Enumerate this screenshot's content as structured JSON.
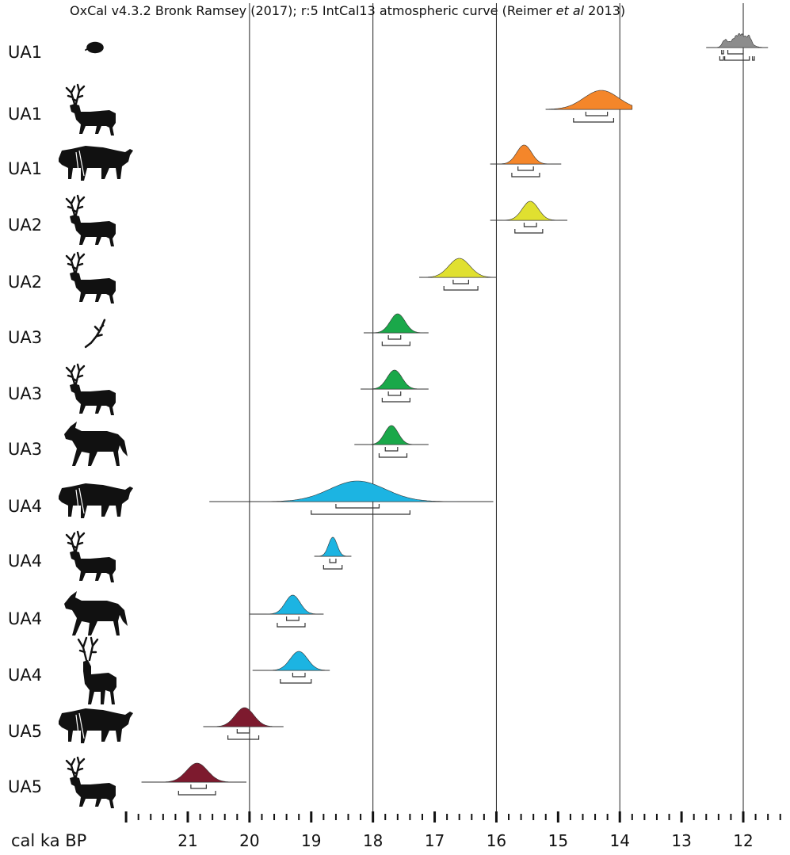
{
  "chart_data": {
    "type": "area",
    "title": "OxCal v4.3.2 Bronk Ramsey (2017); r:5 IntCal13 atmospheric curve (Reimer",
    "title_italic": "et al",
    "title_end": "2013)",
    "xlabel": "cal ka BP",
    "x_axis_reversed": true,
    "xlim": [
      22.0,
      11.3
    ],
    "x_ticks": [
      21,
      20,
      19,
      18,
      17,
      16,
      15,
      14,
      13,
      12
    ],
    "x_tick_labels": [
      "21",
      "20",
      "19",
      "18",
      "17",
      "16",
      "15",
      "14",
      "13",
      "12"
    ],
    "grid_lines_x": [
      20,
      18,
      16,
      14,
      12
    ],
    "series": [
      {
        "label": "UA1",
        "animal_icon": "hedgehog-icon",
        "color": "#8c8c8c",
        "shape": "spiky",
        "peak": 12.05,
        "sigma": 0.12,
        "range": [
          12.6,
          11.6
        ],
        "range_68": [
          [
            12.35,
            12.32
          ],
          [
            12.25,
            12.0
          ]
        ],
        "range_95": [
          [
            12.38,
            12.32
          ],
          [
            12.3,
            11.9
          ],
          [
            11.85,
            11.82
          ]
        ]
      },
      {
        "label": "UA1",
        "animal_icon": "reindeer-icon",
        "color": "#f4862a",
        "peak": 14.3,
        "sigma": 0.28,
        "range": [
          15.2,
          13.8
        ],
        "range_68": [
          [
            14.55,
            14.2
          ]
        ],
        "range_95": [
          [
            14.75,
            14.1
          ]
        ]
      },
      {
        "label": "UA1",
        "animal_icon": "bison-icon",
        "color": "#f4862a",
        "peak": 15.55,
        "sigma": 0.12,
        "range": [
          16.1,
          14.95
        ],
        "range_68": [
          [
            15.65,
            15.4
          ]
        ],
        "range_95": [
          [
            15.75,
            15.3
          ]
        ]
      },
      {
        "label": "UA2",
        "animal_icon": "reindeer-icon",
        "color": "#e0e030",
        "peak": 15.45,
        "sigma": 0.13,
        "range": [
          16.1,
          14.85
        ],
        "range_68": [
          [
            15.55,
            15.35
          ]
        ],
        "range_95": [
          [
            15.7,
            15.25
          ]
        ]
      },
      {
        "label": "UA2",
        "animal_icon": "reindeer-icon",
        "color": "#e0e030",
        "peak": 16.6,
        "sigma": 0.17,
        "range": [
          17.25,
          16.0
        ],
        "range_68": [
          [
            16.7,
            16.45
          ]
        ],
        "range_95": [
          [
            16.85,
            16.3
          ]
        ]
      },
      {
        "label": "UA3",
        "animal_icon": "antler-icon",
        "color": "#1aa84a",
        "peak": 17.6,
        "sigma": 0.12,
        "range": [
          18.15,
          17.1
        ],
        "range_68": [
          [
            17.75,
            17.55
          ]
        ],
        "range_95": [
          [
            17.85,
            17.4
          ]
        ]
      },
      {
        "label": "UA3",
        "animal_icon": "reindeer-icon",
        "color": "#1aa84a",
        "peak": 17.65,
        "sigma": 0.12,
        "range": [
          18.2,
          17.1
        ],
        "range_68": [
          [
            17.75,
            17.55
          ]
        ],
        "range_95": [
          [
            17.85,
            17.4
          ]
        ]
      },
      {
        "label": "UA3",
        "animal_icon": "horse-icon",
        "color": "#1aa84a",
        "peak": 17.7,
        "sigma": 0.11,
        "range": [
          18.3,
          17.1
        ],
        "range_68": [
          [
            17.8,
            17.6
          ]
        ],
        "range_95": [
          [
            17.9,
            17.45
          ]
        ]
      },
      {
        "label": "UA4",
        "animal_icon": "bison-icon",
        "color": "#1cb4e2",
        "peak": 18.25,
        "sigma": 0.45,
        "range": [
          20.65,
          16.05
        ],
        "range_68": [
          [
            18.6,
            17.9
          ]
        ],
        "range_95": [
          [
            19.0,
            17.4
          ]
        ]
      },
      {
        "label": "UA4",
        "animal_icon": "reindeer-icon",
        "color": "#1cb4e2",
        "peak": 18.65,
        "sigma": 0.07,
        "range": [
          18.95,
          18.35
        ],
        "range_68": [
          [
            18.7,
            18.6
          ]
        ],
        "range_95": [
          [
            18.8,
            18.5
          ]
        ]
      },
      {
        "label": "UA4",
        "animal_icon": "horse-icon",
        "color": "#1cb4e2",
        "peak": 19.3,
        "sigma": 0.12,
        "range": [
          20.0,
          18.8
        ],
        "range_68": [
          [
            19.4,
            19.2
          ]
        ],
        "range_95": [
          [
            19.55,
            19.1
          ]
        ]
      },
      {
        "label": "UA4",
        "animal_icon": "red-deer-icon",
        "color": "#1cb4e2",
        "peak": 19.2,
        "sigma": 0.14,
        "range": [
          19.95,
          18.7
        ],
        "range_68": [
          [
            19.3,
            19.1
          ]
        ],
        "range_95": [
          [
            19.5,
            19.0
          ]
        ]
      },
      {
        "label": "UA5",
        "animal_icon": "bison-icon",
        "color": "#7d1a2e",
        "peak": 20.08,
        "sigma": 0.15,
        "range": [
          20.75,
          19.45
        ],
        "range_68": [
          [
            20.2,
            20.0
          ]
        ],
        "range_95": [
          [
            20.35,
            19.85
          ]
        ]
      },
      {
        "label": "UA5",
        "animal_icon": "reindeer-icon",
        "color": "#7d1a2e",
        "peak": 20.85,
        "sigma": 0.17,
        "range": [
          21.75,
          20.05
        ],
        "range_68": [
          [
            20.95,
            20.7
          ]
        ],
        "range_95": [
          [
            21.15,
            20.55
          ]
        ]
      }
    ]
  }
}
